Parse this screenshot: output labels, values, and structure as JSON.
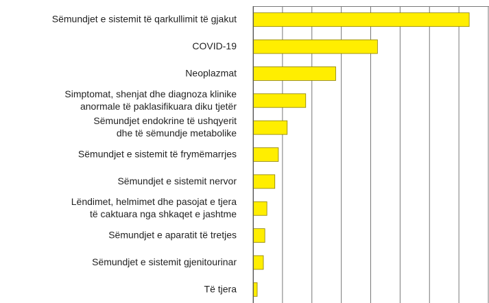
{
  "chart_data": {
    "type": "barh",
    "categories": [
      "Sëmundjet e sistemit të qarkullimit të gjakut",
      "COVID-19",
      "Neoplazmat",
      "Simptomat, shenjat dhe diagnoza klinike\nanormale të paklasifikuara diku tjetër",
      "Sëmundjet endokrine të ushqyerit\ndhe të sëmundje metabolike",
      "Sëmundjet e sistemit të frymëmarrjes",
      "Sëmundjet e sistemit nervor",
      "Lëndimet, helmimet dhe pasojat e tjera\ntë caktuara nga shkaqet e jashtme",
      "Sëmundjet e aparatit të tretjes",
      "Sëmundjet e sistemit gjenitourinar",
      "Të tjera"
    ],
    "values": [
      7350,
      4230,
      2810,
      1790,
      1160,
      860,
      740,
      470,
      400,
      350,
      140
    ],
    "color": "#ffee00",
    "xlim": [
      0,
      8000
    ],
    "xticks": [
      0,
      1000,
      2000,
      3000,
      4000,
      5000,
      6000,
      7000,
      8000
    ],
    "grid": true
  }
}
